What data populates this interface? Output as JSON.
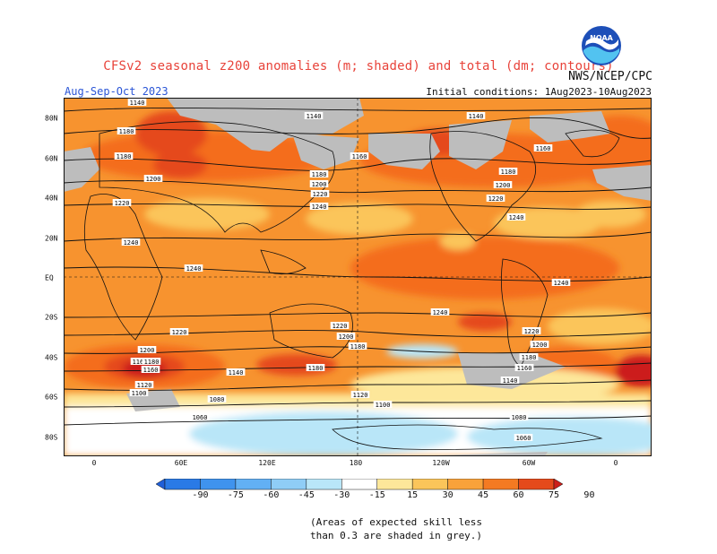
{
  "title": "CFSv2 seasonal z200 anomalies (m; shaded) and total (dm; contours)",
  "org": "NWS/NCEP/CPC",
  "season": "Aug-Sep-Oct 2023",
  "initial_conditions": "Initial conditions: 1Aug2023-10Aug2023",
  "logo_text": "NOAA",
  "lon_ticks": [
    "0",
    "60E",
    "120E",
    "180",
    "120W",
    "60W",
    "0"
  ],
  "lat_ticks": [
    "80N",
    "60N",
    "40N",
    "20N",
    "EQ",
    "20S",
    "40S",
    "60S",
    "80S"
  ],
  "colorbar": {
    "labels": [
      "-90",
      "-75",
      "-60",
      "-45",
      "-30",
      "-15",
      "15",
      "30",
      "45",
      "60",
      "75",
      "90"
    ],
    "colors": [
      "#1f5fd8",
      "#2a7ae6",
      "#3f93ee",
      "#62b0f4",
      "#8fcdf6",
      "#b9e6f8",
      "#ffffff",
      "#fde79a",
      "#fbc55a",
      "#f9a23a",
      "#f47a22",
      "#e54a1b",
      "#cc1f1a"
    ]
  },
  "note": [
    "(Areas of expected skill less",
    "than 0.3 are shaded in grey.)"
  ],
  "contour_labels": [
    "1140",
    "1140",
    "1140",
    "1180",
    "1180",
    "1200",
    "1220",
    "1240",
    "1180",
    "1200",
    "1220",
    "1240",
    "1160",
    "1160",
    "1180",
    "1200",
    "1220",
    "1240",
    "1240",
    "1240",
    "1240",
    "1220",
    "1220",
    "1200",
    "1180",
    "1160",
    "1140",
    "1200",
    "1180",
    "1160",
    "1120",
    "1100",
    "1080",
    "1060",
    "1140",
    "1180",
    "1220",
    "1200",
    "1180",
    "1160",
    "1120",
    "1100",
    "1220",
    "1200",
    "1180",
    "1160",
    "1140",
    "1080",
    "1060"
  ]
}
